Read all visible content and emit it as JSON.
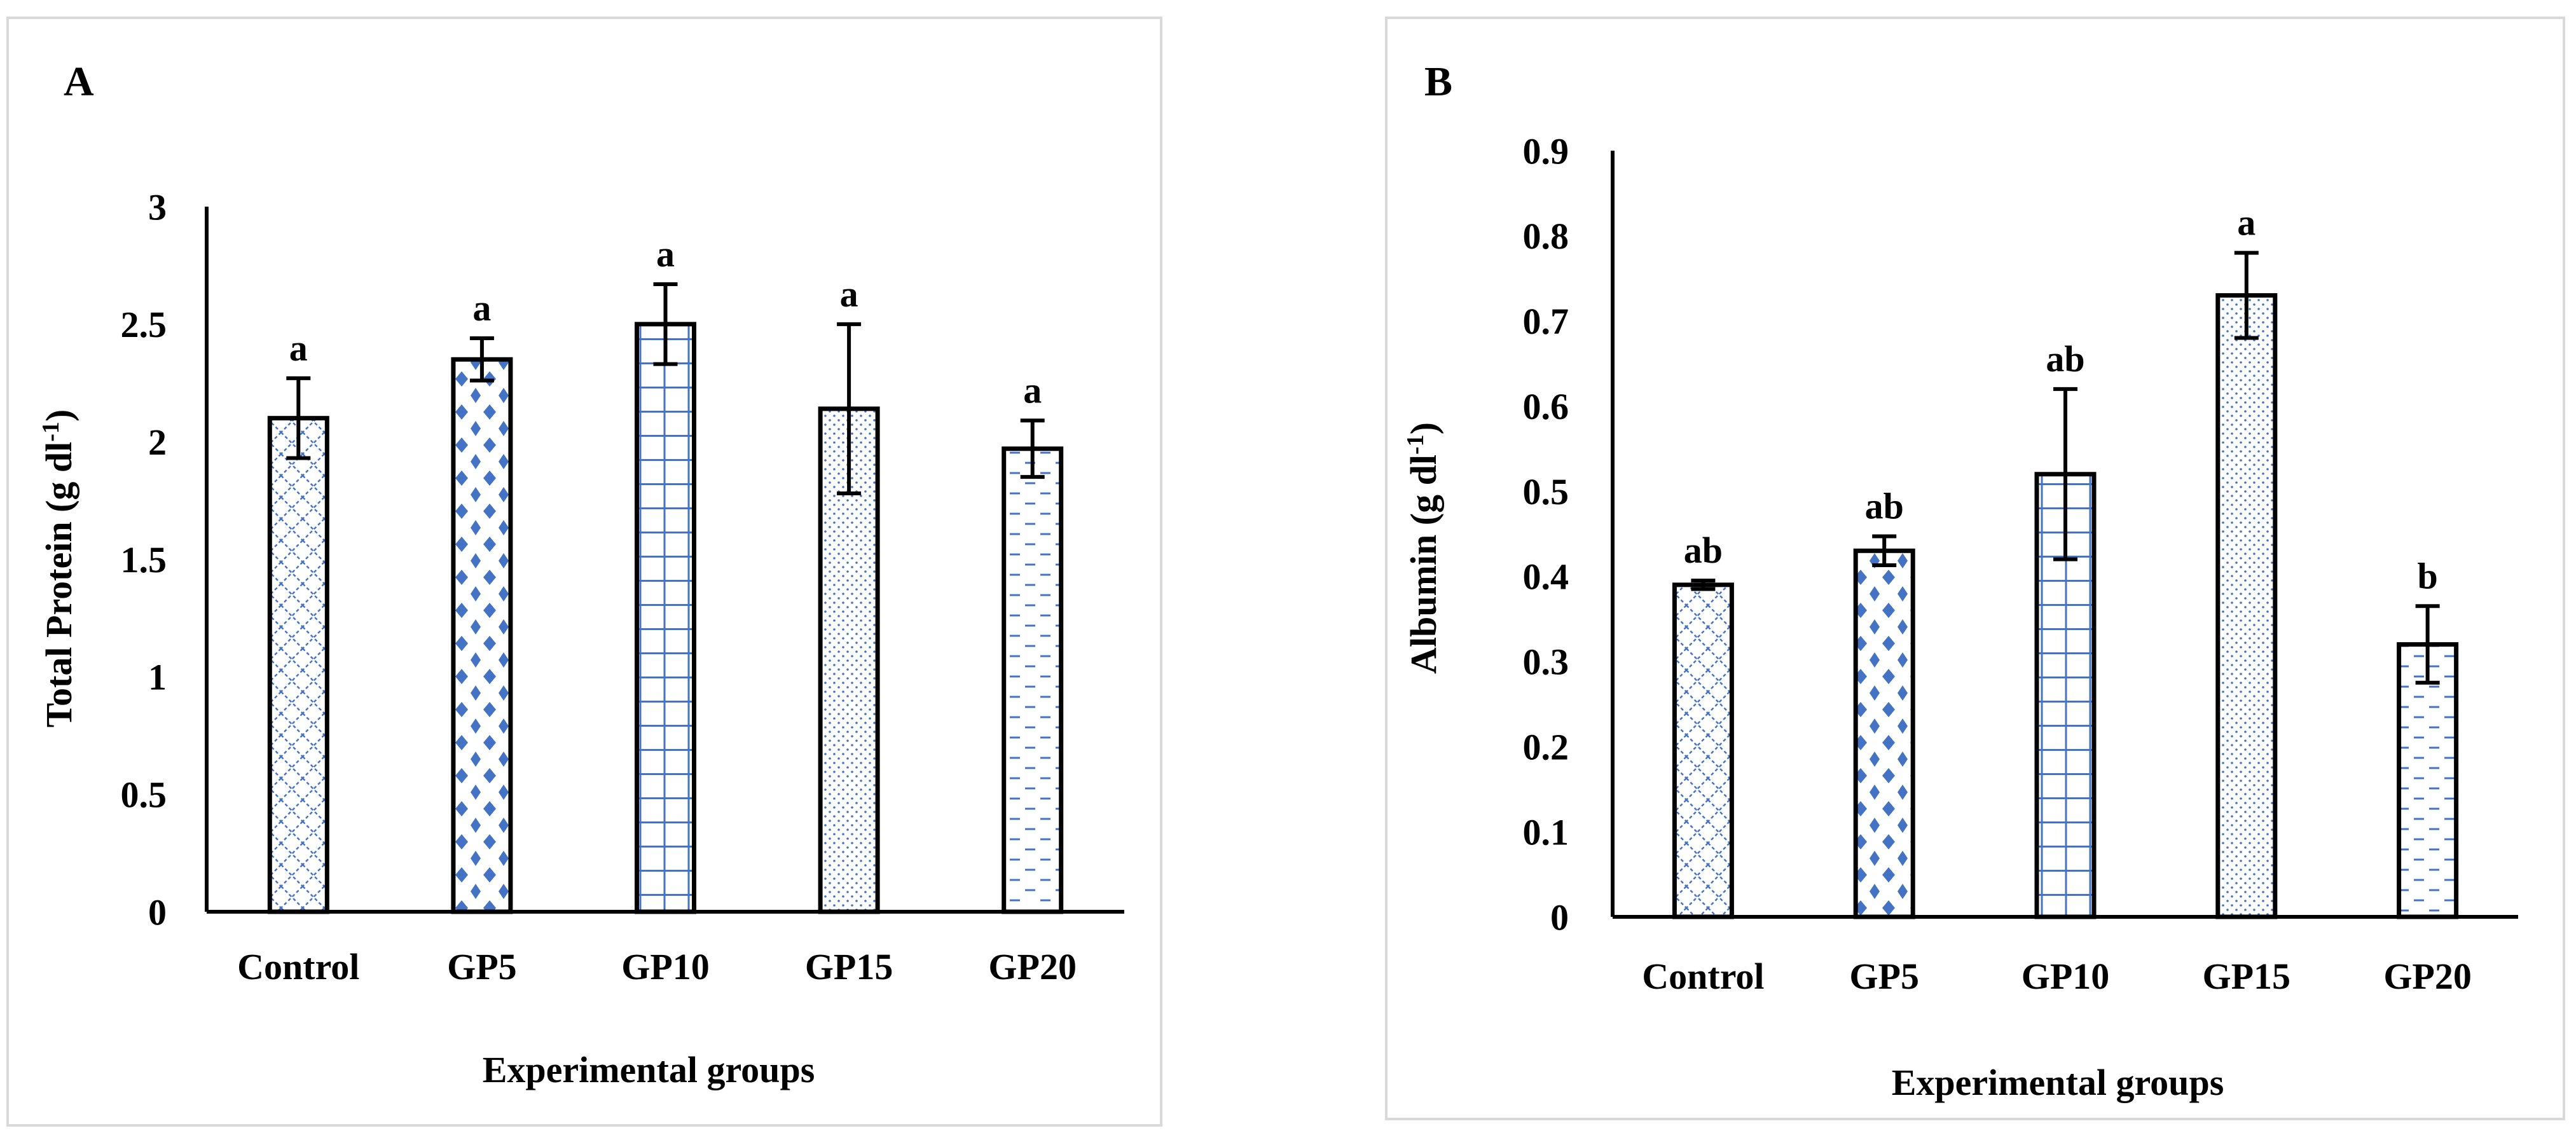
{
  "colors": {
    "bar_outline": "#000000",
    "pattern": "#4472c4",
    "panel_border": "#d9d9d9",
    "background": "#ffffff"
  },
  "chart_data": [
    {
      "panel_label": "A",
      "type": "bar",
      "title": "",
      "xlabel": "Experimental groups",
      "ylabel": "Total Protein (g dl",
      "ylabel_superscript": "-1",
      "ylabel_close": ")",
      "ylim": [
        0,
        3
      ],
      "yticks": [
        {
          "value": 0,
          "label": "0"
        },
        {
          "value": 0.5,
          "label": "0.5"
        },
        {
          "value": 1,
          "label": "1"
        },
        {
          "value": 1.5,
          "label": "1.5"
        },
        {
          "value": 2,
          "label": "2"
        },
        {
          "value": 2.5,
          "label": "2.5"
        },
        {
          "value": 3,
          "label": "3"
        }
      ],
      "categories": [
        "Control",
        "GP5",
        "GP10",
        "GP15",
        "GP20"
      ],
      "values": [
        2.1,
        2.35,
        2.5,
        2.14,
        1.97
      ],
      "errors": [
        0.17,
        0.09,
        0.17,
        0.36,
        0.12
      ],
      "significance": [
        "a",
        "a",
        "a",
        "a",
        "a"
      ],
      "patterns": [
        "cross",
        "dots-diamond",
        "grid",
        "stipple",
        "dashes"
      ],
      "grid": false
    },
    {
      "panel_label": "B",
      "type": "bar",
      "title": "",
      "xlabel": "Experimental groups",
      "ylabel": "Albumin (g dl",
      "ylabel_superscript": "-1",
      "ylabel_close": ")",
      "ylim": [
        0,
        0.9
      ],
      "yticks": [
        {
          "value": 0,
          "label": "0"
        },
        {
          "value": 0.1,
          "label": "0.1"
        },
        {
          "value": 0.2,
          "label": "0.2"
        },
        {
          "value": 0.3,
          "label": "0.3"
        },
        {
          "value": 0.4,
          "label": "0.4"
        },
        {
          "value": 0.5,
          "label": "0.5"
        },
        {
          "value": 0.6,
          "label": "0.6"
        },
        {
          "value": 0.7,
          "label": "0.7"
        },
        {
          "value": 0.8,
          "label": "0.8"
        },
        {
          "value": 0.9,
          "label": "0.9"
        }
      ],
      "categories": [
        "Control",
        "GP5",
        "GP10",
        "GP15",
        "GP20"
      ],
      "values": [
        0.39,
        0.43,
        0.52,
        0.73,
        0.32
      ],
      "errors": [
        0.005,
        0.017,
        0.1,
        0.05,
        0.045
      ],
      "significance": [
        "ab",
        "ab",
        "ab",
        "a",
        "b"
      ],
      "patterns": [
        "cross",
        "dots-diamond",
        "grid",
        "stipple",
        "dashes"
      ],
      "grid": false
    }
  ]
}
